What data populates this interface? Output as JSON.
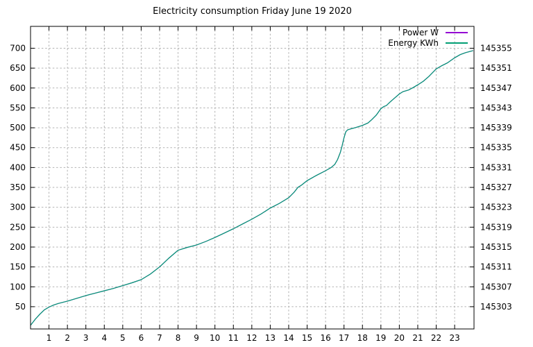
{
  "chart_data": {
    "type": "line",
    "title": "Electricity consumption Friday June 19 2020",
    "xlabel": "",
    "ylabel": "",
    "grid": true,
    "legend_position": "top-right-inside",
    "background_color": "#ffffff",
    "grid_color": "#b2b2b2",
    "x_range": [
      0,
      24.05
    ],
    "y_range": [
      -6,
      755
    ],
    "x_ticks": [
      1,
      2,
      3,
      4,
      5,
      6,
      7,
      8,
      9,
      10,
      11,
      12,
      13,
      14,
      15,
      16,
      17,
      18,
      19,
      20,
      21,
      22,
      23
    ],
    "y_ticks": [
      50,
      100,
      150,
      200,
      250,
      300,
      350,
      400,
      450,
      500,
      550,
      600,
      650,
      700
    ],
    "y2_ticks": [
      145303,
      145307,
      145311,
      145315,
      145319,
      145323,
      145327,
      145331,
      145335,
      145339,
      145343,
      145347,
      145351,
      145355
    ],
    "series": [
      {
        "name": "Power W",
        "color": "#9400D3",
        "axis": "left"
      },
      {
        "name": "Energy KWh",
        "color": "#009E73",
        "axis": "right"
      }
    ],
    "series_overlap_exactly": true,
    "x": [
      0,
      0.25,
      0.5,
      0.75,
      1,
      1.25,
      1.5,
      2,
      2.5,
      3,
      3.5,
      4,
      4.5,
      5,
      5.5,
      6,
      6.5,
      7,
      7.5,
      8,
      8.5,
      9,
      9.5,
      10,
      10.5,
      11,
      11.5,
      12,
      12.5,
      13,
      13.5,
      14,
      14.3,
      14.5,
      14.7,
      15,
      15.5,
      16,
      16.3,
      16.5,
      16.65,
      16.8,
      16.9,
      17,
      17.1,
      17.2,
      17.35,
      17.6,
      18,
      18.3,
      18.5,
      18.75,
      19,
      19.15,
      19.3,
      19.5,
      19.7,
      20,
      20.2,
      20.5,
      20.75,
      21,
      21.3,
      21.6,
      22,
      22.3,
      22.6,
      23,
      23.3,
      23.6,
      24
    ],
    "power_w": [
      3,
      18,
      31,
      42,
      49,
      54,
      58,
      64,
      71,
      78,
      84,
      90,
      96,
      103,
      110,
      118,
      132,
      150,
      172,
      192,
      199,
      205,
      214,
      224,
      235,
      246,
      258,
      270,
      283,
      298,
      310,
      324,
      338,
      350,
      356,
      367,
      380,
      392,
      400,
      408,
      420,
      438,
      455,
      475,
      490,
      495,
      497,
      500,
      506,
      512,
      520,
      532,
      548,
      553,
      556,
      565,
      573,
      585,
      591,
      595,
      601,
      608,
      617,
      629,
      648,
      656,
      663,
      676,
      684,
      689,
      694
    ],
    "energy_kwh": [
      145299.24,
      145300.44,
      145301.48,
      145302.36,
      145302.92,
      145303.32,
      145303.64,
      145304.12,
      145304.68,
      145305.24,
      145305.72,
      145306.2,
      145306.68,
      145307.24,
      145307.8,
      145308.44,
      145309.56,
      145311.0,
      145312.76,
      145314.36,
      145314.92,
      145315.4,
      145316.12,
      145316.92,
      145317.8,
      145318.68,
      145319.64,
      145320.6,
      145321.64,
      145322.84,
      145323.8,
      145324.92,
      145326.04,
      145327.0,
      145327.48,
      145328.36,
      145329.4,
      145330.36,
      145331.0,
      145331.64,
      145332.6,
      145334.04,
      145335.4,
      145337.0,
      145338.2,
      145338.6,
      145338.76,
      145339.0,
      145339.48,
      145339.96,
      145340.6,
      145341.56,
      145342.84,
      145343.24,
      145343.48,
      145344.2,
      145344.84,
      145345.8,
      145346.28,
      145346.6,
      145347.08,
      145347.64,
      145348.36,
      145349.32,
      145350.84,
      145351.48,
      145352.04,
      145353.08,
      145353.72,
      145354.12,
      145354.52
    ]
  }
}
